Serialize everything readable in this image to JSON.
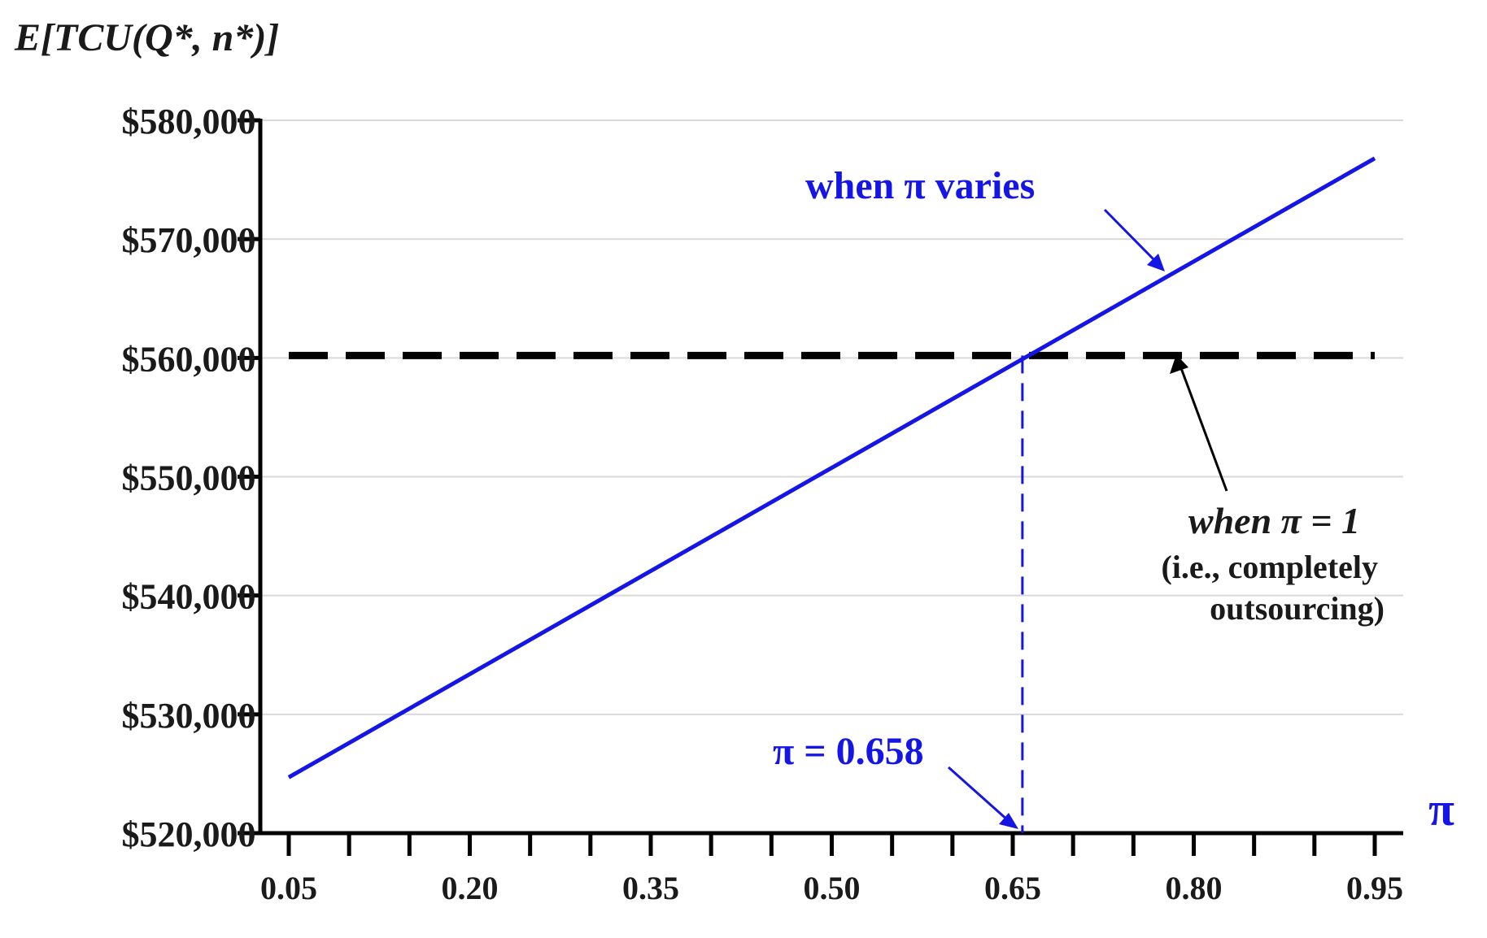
{
  "colors": {
    "series": "#1515e6",
    "reference": "#000000",
    "grid": "#d9d9d9",
    "axis": "#000000"
  },
  "chart_data": {
    "type": "line",
    "ylabel": "E[TCU(Q*, n*)]",
    "xlabel": "π",
    "xlim": [
      0.05,
      0.95
    ],
    "ylim": [
      520000,
      580000
    ],
    "x_ticks": [
      "0.05",
      "0.20",
      "0.35",
      "0.50",
      "0.65",
      "0.80",
      "0.95"
    ],
    "y_ticks": [
      "$520,000",
      "$530,000",
      "$540,000",
      "$550,000",
      "$560,000",
      "$570,000",
      "$580,000"
    ],
    "y_tick_values": [
      520000,
      530000,
      540000,
      550000,
      560000,
      570000,
      580000
    ],
    "grid": "horizontal",
    "series": [
      {
        "x": [
          0.05,
          0.95
        ],
        "y": [
          524700,
          576800
        ]
      }
    ],
    "reference_line": {
      "y": 560200,
      "x": [
        0.05,
        0.95
      ]
    },
    "vertical_marker": {
      "x": 0.658
    },
    "annotations": {
      "series_label": "when π varies",
      "reference_label": "when π = 1",
      "reference_note_1": "(i.e., completely",
      "reference_note_2": "outsourcing)",
      "crossing_label": "π = 0.658"
    }
  }
}
